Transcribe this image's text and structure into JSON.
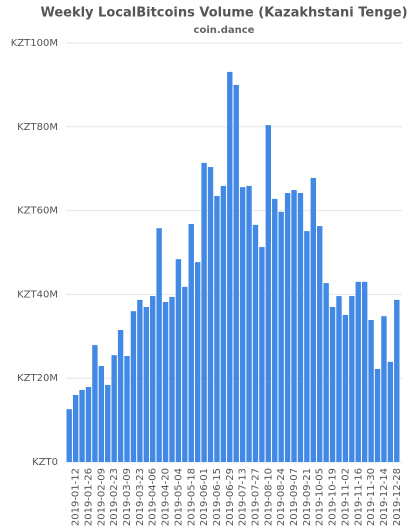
{
  "chart_data": {
    "type": "bar",
    "title": "Weekly LocalBitcoins Volume (Kazakhstani Tenge)",
    "subtitle": "coin.dance",
    "categories": [
      null,
      "2019-01-12",
      null,
      "2019-01-26",
      null,
      "2019-02-09",
      null,
      "2019-02-23",
      null,
      "2019-03-09",
      null,
      "2019-03-23",
      null,
      "2019-04-06",
      null,
      "2019-04-20",
      null,
      "2019-05-04",
      null,
      "2019-05-18",
      null,
      "2019-06-01",
      null,
      "2019-06-15",
      null,
      "2019-06-29",
      null,
      "2019-07-13",
      null,
      "2019-07-27",
      null,
      "2019-08-10",
      null,
      "2019-08-24",
      null,
      "2019-09-07",
      null,
      "2019-09-21",
      null,
      "2019-10-05",
      null,
      "2019-10-19",
      null,
      "2019-11-02",
      null,
      "2019-11-16",
      null,
      "2019-11-30",
      null,
      "2019-12-14",
      null,
      "2019-12-28"
    ],
    "values": [
      12.6,
      16,
      17.2,
      17.9,
      27.9,
      22.9,
      18.4,
      25.5,
      31.5,
      25.3,
      36,
      38.7,
      37,
      39.6,
      55.8,
      38.2,
      39.4,
      48.4,
      41.8,
      56.8,
      47.7,
      71.4,
      70.4,
      63.5,
      65.9,
      93.1,
      90,
      65.6,
      65.9,
      56.6,
      51.3,
      80.4,
      62.8,
      59.7,
      64.2,
      64.9,
      64.2,
      55.1,
      67.8,
      56.3,
      42.7,
      37,
      39.6,
      35.1,
      39.6,
      43,
      43,
      33.9,
      22.2,
      34.8,
      23.9,
      38.7
    ],
    "color": "#4289e6",
    "ylim": [
      0,
      100
    ],
    "yticks": [
      {
        "value": 0,
        "label": "KZT0"
      },
      {
        "value": 20,
        "label": "KZT20M"
      },
      {
        "value": 40,
        "label": "KZT40M"
      },
      {
        "value": 60,
        "label": "KZT60M"
      },
      {
        "value": 80,
        "label": "KZT80M"
      },
      {
        "value": 100,
        "label": "KZT100M"
      }
    ],
    "grid": true
  }
}
